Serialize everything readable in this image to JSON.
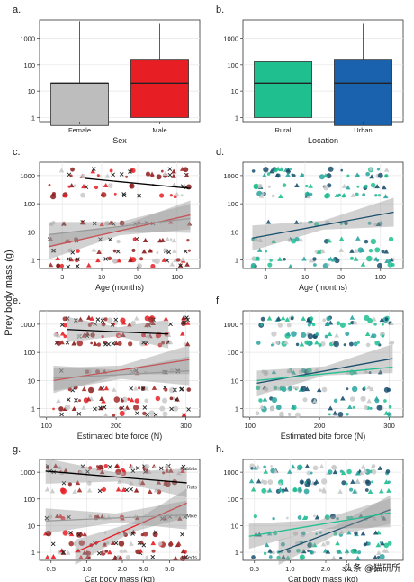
{
  "shared": {
    "ylabel": "Prey body mass (g)"
  },
  "watermark": "头条 @猫研所",
  "colors": {
    "female": "#bdbdbd",
    "male": "#e81e25",
    "rural": "#1fbf8f",
    "urban": "#1a62ad",
    "red_dark": "#8b1a1a",
    "teal_dark": "#1a4f6d"
  },
  "chart_data": [
    {
      "id": "a",
      "panel_label": "a.",
      "type": "box",
      "xlabel": "Sex",
      "ylabel": "",
      "yscale": "log",
      "ylim": [
        0.7,
        5000
      ],
      "yticks": [
        "1",
        "10",
        "100",
        "1000"
      ],
      "categories": [
        "Female",
        "Male"
      ],
      "boxes": [
        {
          "name": "Female",
          "min": 0.5,
          "q1": 0.5,
          "median": 20,
          "q3": 20,
          "max": 4500,
          "color": "#bdbdbd"
        },
        {
          "name": "Male",
          "min": 1,
          "q1": 1,
          "median": 20,
          "q3": 150,
          "max": 3500,
          "color": "#e81e25"
        }
      ]
    },
    {
      "id": "b",
      "panel_label": "b.",
      "type": "box",
      "xlabel": "Location",
      "ylabel": "",
      "yscale": "log",
      "ylim": [
        0.7,
        5000
      ],
      "yticks": [
        "1",
        "10",
        "100",
        "1000"
      ],
      "categories": [
        "Rural",
        "Urban"
      ],
      "boxes": [
        {
          "name": "Rural",
          "min": 1,
          "q1": 1,
          "median": 20,
          "q3": 130,
          "max": 4500,
          "color": "#1fbf8f"
        },
        {
          "name": "Urban",
          "min": 0.5,
          "q1": 0.5,
          "median": 20,
          "q3": 150,
          "max": 3500,
          "color": "#1a62ad"
        }
      ]
    },
    {
      "id": "c",
      "panel_label": "c.",
      "type": "scatter",
      "palette": "red",
      "xlabel": "Age (months)",
      "ylabel": "",
      "xscale": "log",
      "yscale": "log",
      "xlim": [
        1.5,
        200
      ],
      "ylim": [
        0.5,
        3000
      ],
      "xticks": [
        {
          "v": 3,
          "t": "3"
        },
        {
          "v": 10,
          "t": "10"
        },
        {
          "v": 30,
          "t": "30"
        },
        {
          "v": 100,
          "t": "100"
        }
      ],
      "yticks": [
        "1",
        "10",
        "100",
        "1000"
      ],
      "lines": [
        {
          "x": [
            6,
            150
          ],
          "y": [
            800,
            350
          ],
          "color": "#000000",
          "band": false
        },
        {
          "x": [
            2,
            150
          ],
          "y": [
            3,
            40
          ],
          "color": "#e81e25",
          "band": true
        },
        {
          "x": [
            2,
            150
          ],
          "y": [
            8,
            30
          ],
          "color": "#999999",
          "band": true
        }
      ],
      "points": {
        "seed": 3,
        "count": 170,
        "x": [
          2,
          150
        ],
        "y": [
          0.6,
          1500
        ]
      }
    },
    {
      "id": "d",
      "panel_label": "d.",
      "type": "scatter",
      "palette": "teal",
      "xlabel": "Age (months)",
      "ylabel": "",
      "xscale": "log",
      "yscale": "log",
      "xlim": [
        1.5,
        200
      ],
      "ylim": [
        0.5,
        3000
      ],
      "xticks": [
        {
          "v": 3,
          "t": "3"
        },
        {
          "v": 10,
          "t": "10"
        },
        {
          "v": 30,
          "t": "30"
        },
        {
          "v": 100,
          "t": "100"
        }
      ],
      "yticks": [
        "1",
        "10",
        "100",
        "1000"
      ],
      "lines": [
        {
          "x": [
            2,
            150
          ],
          "y": [
            6,
            50
          ],
          "color": "#1a4f6d",
          "band": true
        }
      ],
      "points": {
        "seed": 7,
        "count": 170,
        "x": [
          2,
          150
        ],
        "y": [
          0.6,
          1500
        ]
      }
    },
    {
      "id": "e",
      "panel_label": "e.",
      "type": "scatter",
      "palette": "red",
      "xlabel": "Estimated bite force (N)",
      "ylabel": "",
      "xscale": "linear",
      "yscale": "log",
      "xlim": [
        90,
        320
      ],
      "ylim": [
        0.5,
        3000
      ],
      "xticks": [
        {
          "v": 100,
          "t": "100"
        },
        {
          "v": 200,
          "t": "200"
        },
        {
          "v": 300,
          "t": "300"
        }
      ],
      "yticks": [
        "1",
        "10",
        "100",
        "1000"
      ],
      "lines": [
        {
          "x": [
            130,
            275
          ],
          "y": [
            650,
            450
          ],
          "color": "#000000",
          "band": true
        },
        {
          "x": [
            110,
            305
          ],
          "y": [
            10,
            55
          ],
          "color": "#e81e25",
          "band": true
        },
        {
          "x": [
            110,
            305
          ],
          "y": [
            12,
            22
          ],
          "color": "#999999",
          "band": true
        }
      ],
      "points": {
        "seed": 11,
        "count": 200,
        "x": [
          110,
          305
        ],
        "y": [
          0.6,
          1500
        ]
      }
    },
    {
      "id": "f",
      "panel_label": "f.",
      "type": "scatter",
      "palette": "teal",
      "xlabel": "Estimated bite force (N)",
      "ylabel": "",
      "xscale": "linear",
      "yscale": "log",
      "xlim": [
        90,
        320
      ],
      "ylim": [
        0.5,
        3000
      ],
      "xticks": [
        {
          "v": 100,
          "t": "100"
        },
        {
          "v": 200,
          "t": "200"
        },
        {
          "v": 300,
          "t": "300"
        }
      ],
      "yticks": [
        "1",
        "10",
        "100",
        "1000"
      ],
      "lines": [
        {
          "x": [
            110,
            305
          ],
          "y": [
            8,
            60
          ],
          "color": "#1a4f6d",
          "band": true
        },
        {
          "x": [
            110,
            305
          ],
          "y": [
            10,
            30
          ],
          "color": "#1fbf8f",
          "band": false
        }
      ],
      "points": {
        "seed": 13,
        "count": 200,
        "x": [
          110,
          305
        ],
        "y": [
          0.6,
          1500
        ]
      }
    },
    {
      "id": "g",
      "panel_label": "g.",
      "type": "scatter",
      "palette": "red",
      "xlabel": "Cat body mass (kg)",
      "ylabel": "",
      "xscale": "log",
      "yscale": "log",
      "xlim": [
        0.4,
        9
      ],
      "ylim": [
        0.5,
        3000
      ],
      "xticks": [
        {
          "v": 0.5,
          "t": "0.5"
        },
        {
          "v": 1,
          "t": "1.0"
        },
        {
          "v": 2,
          "t": "2.0"
        },
        {
          "v": 3,
          "t": "3.0"
        },
        {
          "v": 5,
          "t": "5.0"
        }
      ],
      "yticks": [
        "1",
        "10",
        "100",
        "1000"
      ],
      "annotations": [
        "Rabbits",
        "Rats",
        "Mice",
        "Insects"
      ],
      "annotation_y": [
        1500,
        300,
        25,
        0.7
      ],
      "lines": [
        {
          "x": [
            0.45,
            7
          ],
          "y": [
            1100,
            400
          ],
          "color": "#000000",
          "band": true
        },
        {
          "x": [
            0.8,
            7
          ],
          "y": [
            1,
            70
          ],
          "color": "#e81e25",
          "band": true
        },
        {
          "x": [
            0.45,
            7
          ],
          "y": [
            15,
            25
          ],
          "color": "#999999",
          "band": true
        }
      ],
      "points": {
        "seed": 17,
        "count": 200,
        "x": [
          0.45,
          7
        ],
        "y": [
          0.6,
          1500
        ]
      }
    },
    {
      "id": "h",
      "panel_label": "h.",
      "type": "scatter",
      "palette": "teal",
      "xlabel": "Cat body mass (kg)",
      "ylabel": "",
      "xscale": "log",
      "yscale": "log",
      "xlim": [
        0.4,
        9
      ],
      "ylim": [
        0.5,
        3000
      ],
      "xticks": [
        {
          "v": 0.5,
          "t": "0.5"
        },
        {
          "v": 1,
          "t": "1.0"
        },
        {
          "v": 2,
          "t": "2.0"
        },
        {
          "v": 3,
          "t": "3.0"
        },
        {
          "v": 5,
          "t": "5.0"
        }
      ],
      "yticks": [
        "1",
        "10",
        "100",
        "1000"
      ],
      "lines": [
        {
          "x": [
            0.8,
            7
          ],
          "y": [
            1,
            40
          ],
          "color": "#1a4f6d",
          "band": true
        },
        {
          "x": [
            0.45,
            7
          ],
          "y": [
            4,
            30
          ],
          "color": "#1fbf8f",
          "band": true
        }
      ],
      "points": {
        "seed": 19,
        "count": 200,
        "x": [
          0.45,
          7
        ],
        "y": [
          0.6,
          1500
        ]
      }
    }
  ]
}
